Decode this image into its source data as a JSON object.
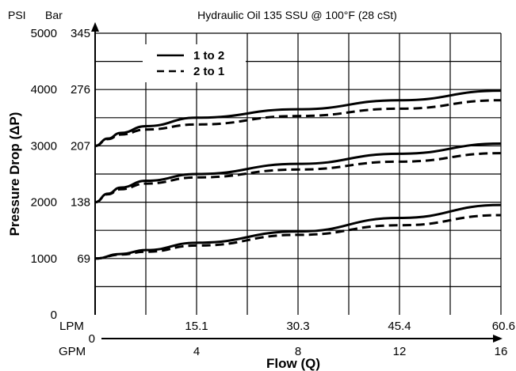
{
  "chart_data": {
    "type": "line",
    "title": "Hydraulic Oil 135 SSU @ 100°F (28 cSt)",
    "ylabel": "Pressure Drop (ΔP)",
    "xlabel": "Flow (Q)",
    "y_unit_left": "PSI",
    "y_unit_right": "Bar",
    "x_unit_top": "LPM",
    "x_unit_bottom": "GPM",
    "ylim": [
      0,
      5000
    ],
    "xlim": [
      0,
      16
    ],
    "y_ticks_psi": [
      "0",
      "1000",
      "2000",
      "3000",
      "4000",
      "5000"
    ],
    "y_ticks_bar": [
      "69",
      "138",
      "207",
      "276",
      "345"
    ],
    "x_ticks_lpm": [
      "15.1",
      "30.3",
      "45.4",
      "60.6"
    ],
    "x_ticks_gpm": [
      "0",
      "4",
      "8",
      "12",
      "16"
    ],
    "grid": true,
    "legend": {
      "position": "top-left",
      "entries": [
        {
          "label": "1 to 2",
          "style": "solid"
        },
        {
          "label": "2 to 1",
          "style": "dashed"
        }
      ]
    },
    "series": [
      {
        "group": "high",
        "style": "solid",
        "x": [
          0,
          0.5,
          1,
          2,
          4,
          8,
          12,
          16
        ],
        "y": [
          3000,
          3130,
          3230,
          3350,
          3500,
          3650,
          3810,
          3980
        ]
      },
      {
        "group": "high",
        "style": "dashed",
        "x": [
          0,
          0.5,
          1,
          2,
          4,
          8,
          12,
          16
        ],
        "y": [
          3000,
          3120,
          3200,
          3290,
          3380,
          3530,
          3660,
          3810
        ]
      },
      {
        "group": "mid",
        "style": "solid",
        "x": [
          0,
          0.5,
          1,
          2,
          4,
          8,
          12,
          16
        ],
        "y": [
          2000,
          2150,
          2260,
          2380,
          2500,
          2680,
          2860,
          3040
        ]
      },
      {
        "group": "mid",
        "style": "dashed",
        "x": [
          0,
          0.5,
          1,
          2,
          4,
          8,
          12,
          16
        ],
        "y": [
          2000,
          2140,
          2230,
          2330,
          2440,
          2580,
          2720,
          2870
        ]
      },
      {
        "group": "low",
        "style": "solid",
        "x": [
          0,
          1,
          2,
          4,
          8,
          12,
          16
        ],
        "y": [
          1000,
          1080,
          1150,
          1280,
          1480,
          1720,
          1950
        ]
      },
      {
        "group": "low",
        "style": "dashed",
        "x": [
          0,
          1,
          2,
          4,
          8,
          12,
          16
        ],
        "y": [
          1000,
          1070,
          1120,
          1230,
          1420,
          1590,
          1770
        ]
      }
    ]
  }
}
